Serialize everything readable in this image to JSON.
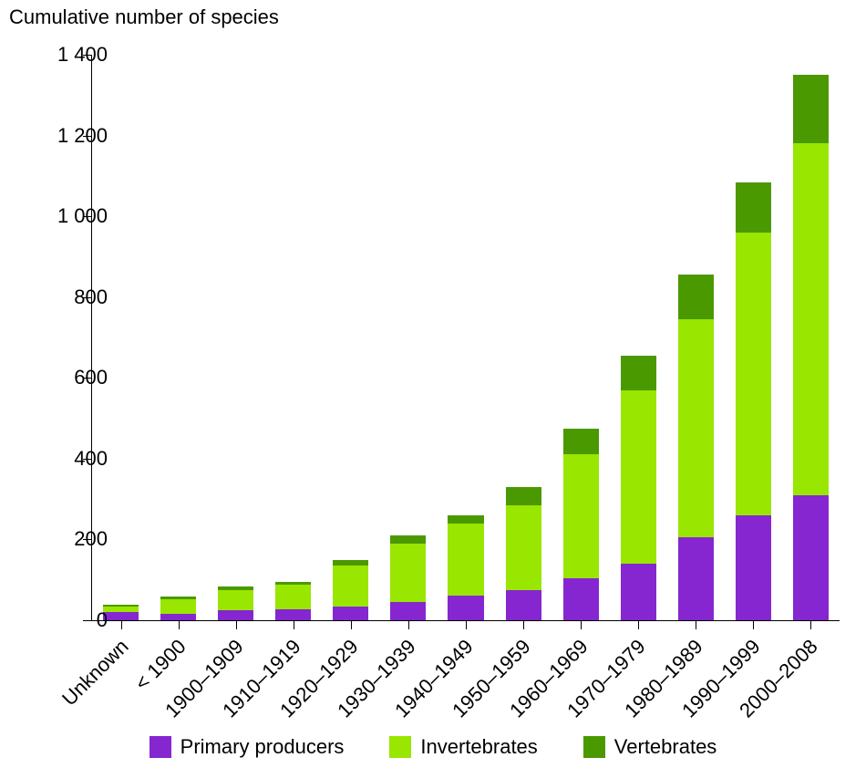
{
  "chart": {
    "type": "stacked-bar",
    "y_axis_title": "Cumulative number of species",
    "background_color": "#ffffff",
    "axis_color": "#000000",
    "text_color": "#000000",
    "title_fontsize": 22,
    "tick_fontsize": 22,
    "legend_fontsize": 22,
    "font_family": "Verdana",
    "ylim": [
      0,
      1400
    ],
    "ytick_step": 200,
    "y_ticks": [
      0,
      200,
      400,
      600,
      800,
      1000,
      1200,
      1400
    ],
    "y_tick_labels": [
      "0",
      "200",
      "400",
      "600",
      "800",
      "1 000",
      "1 200",
      "1 400"
    ],
    "bar_width_ratio": 0.62,
    "x_label_rotation_deg": -45,
    "categories": [
      "Unknown",
      "< 1900",
      "1900–1909",
      "1910–1919",
      "1920–1929",
      "1930–1939",
      "1940–1949",
      "1950–1959",
      "1960–1969",
      "1970–1979",
      "1980–1989",
      "1990–1999",
      "2000–2008"
    ],
    "series": [
      {
        "name": "Primary producers",
        "color": "#8626d0",
        "values": [
          20,
          15,
          25,
          28,
          35,
          45,
          60,
          75,
          105,
          140,
          205,
          260,
          310
        ]
      },
      {
        "name": "Invertebrates",
        "color": "#99e600",
        "values": [
          15,
          38,
          50,
          60,
          100,
          145,
          180,
          210,
          305,
          430,
          540,
          700,
          870
        ]
      },
      {
        "name": "Vertebrates",
        "color": "#4b9900",
        "values": [
          4,
          5,
          8,
          8,
          15,
          20,
          20,
          45,
          65,
          85,
          110,
          125,
          170
        ]
      }
    ],
    "legend_position": "bottom"
  }
}
